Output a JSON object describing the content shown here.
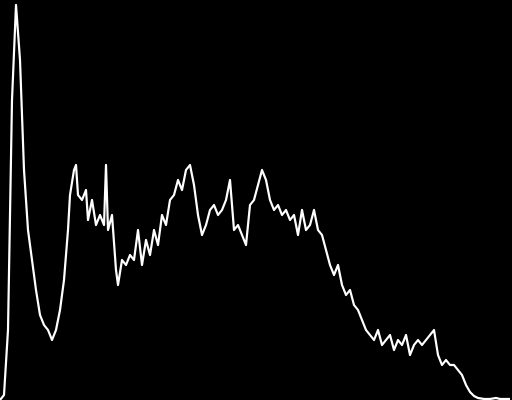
{
  "chart_data": {
    "type": "line",
    "color": "#ffffff",
    "background": "#000000",
    "xlim": [
      0,
      255
    ],
    "ylim": [
      0,
      400
    ],
    "x": [
      0,
      2,
      4,
      6,
      8,
      10,
      12,
      14,
      16,
      18,
      20,
      22,
      24,
      26,
      28,
      30,
      32,
      34,
      35,
      37,
      38,
      39,
      41,
      43,
      44,
      46,
      48,
      50,
      52,
      53,
      54,
      56,
      58,
      59,
      61,
      63,
      65,
      67,
      69,
      71,
      73,
      75,
      77,
      79,
      81,
      83,
      85,
      87,
      89,
      91,
      93,
      95,
      97,
      99,
      101,
      103,
      105,
      107,
      109,
      111,
      113,
      115,
      117,
      119,
      121,
      123,
      125,
      127,
      129,
      131,
      133,
      135,
      137,
      139,
      141,
      143,
      145,
      147,
      149,
      151,
      153,
      155,
      157,
      159,
      161,
      163,
      165,
      167,
      169,
      171,
      173,
      175,
      177,
      179,
      181,
      183,
      185,
      187,
      189,
      191,
      193,
      195,
      197,
      199,
      201,
      203,
      205,
      207,
      209,
      211,
      213,
      215,
      217,
      219,
      221,
      223,
      225,
      227,
      229,
      231,
      233,
      235,
      237,
      239,
      242,
      245,
      248,
      250,
      255
    ],
    "values": [
      0,
      5,
      70,
      300,
      395,
      340,
      230,
      170,
      140,
      110,
      85,
      75,
      70,
      60,
      70,
      90,
      120,
      170,
      205,
      230,
      235,
      205,
      200,
      210,
      180,
      200,
      175,
      185,
      175,
      235,
      170,
      185,
      130,
      115,
      140,
      135,
      145,
      140,
      170,
      135,
      160,
      145,
      170,
      155,
      185,
      175,
      200,
      205,
      220,
      210,
      230,
      235,
      215,
      185,
      165,
      175,
      190,
      195,
      185,
      190,
      200,
      220,
      170,
      175,
      165,
      155,
      195,
      200,
      215,
      230,
      220,
      200,
      190,
      195,
      185,
      190,
      180,
      185,
      165,
      190,
      170,
      175,
      190,
      170,
      165,
      150,
      135,
      125,
      135,
      115,
      105,
      110,
      95,
      90,
      80,
      70,
      65,
      60,
      70,
      55,
      60,
      65,
      50,
      60,
      55,
      65,
      45,
      55,
      60,
      55,
      60,
      65,
      70,
      45,
      35,
      40,
      35,
      35,
      30,
      25,
      15,
      8,
      4,
      2,
      1,
      1,
      2,
      1,
      1
    ]
  }
}
